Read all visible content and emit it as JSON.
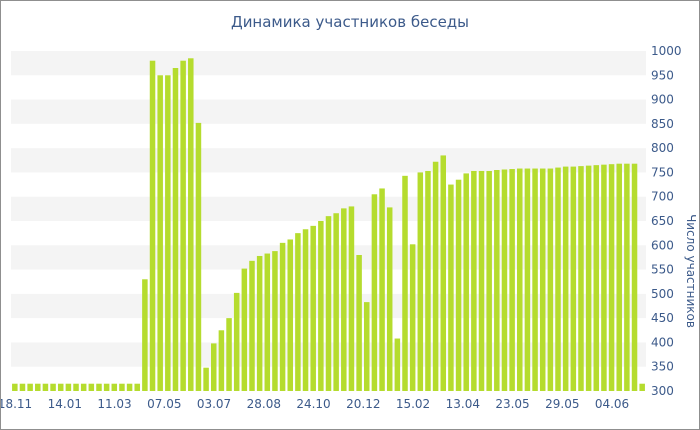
{
  "chart_data": {
    "type": "bar",
    "title": "Динамика участников беседы",
    "ylabel": "Число участников",
    "xlabel": "",
    "ylim": [
      300,
      1000
    ],
    "yticks": [
      300,
      350,
      400,
      450,
      500,
      550,
      600,
      650,
      700,
      750,
      800,
      850,
      900,
      950,
      1000
    ],
    "x_tick_labels": [
      "18.11",
      "14.01",
      "11.03",
      "07.05",
      "03.07",
      "28.08",
      "24.10",
      "20.12",
      "15.02",
      "13.04",
      "23.05",
      "29.05",
      "04.06"
    ],
    "grid": true,
    "legend": "none",
    "colors": {
      "bar": "#b5dc2e",
      "band": "#f4f4f4",
      "text": "#3c5a8a",
      "border": "#8f8f8f"
    },
    "values": [
      315,
      315,
      315,
      315,
      315,
      315,
      315,
      315,
      315,
      315,
      315,
      315,
      315,
      315,
      315,
      315,
      315,
      530,
      980,
      950,
      950,
      965,
      980,
      985,
      852,
      348,
      398,
      425,
      450,
      502,
      552,
      568,
      578,
      583,
      588,
      605,
      612,
      625,
      633,
      640,
      650,
      660,
      666,
      676,
      680,
      580,
      483,
      705,
      717,
      678,
      408,
      743,
      602,
      750,
      753,
      772,
      785,
      725,
      735,
      748,
      753,
      753,
      753,
      755,
      756,
      757,
      758,
      758,
      758,
      758,
      758,
      760,
      762,
      762,
      763,
      764,
      765,
      766,
      767,
      768,
      768,
      768,
      315
    ]
  }
}
